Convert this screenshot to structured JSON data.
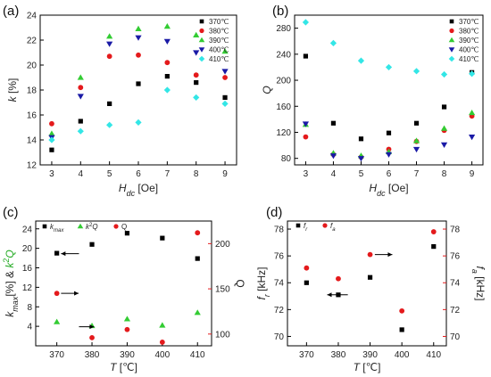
{
  "figure": {
    "panels": [
      "(a)",
      "(b)",
      "(c)",
      "(d)"
    ]
  },
  "chart_data": [
    {
      "type": "scatter",
      "panel": "(a)",
      "xlabel_main": "H",
      "xlabel_sub": "dc",
      "xlabel_unit": "[Oe]",
      "ylabel_main": "k",
      "ylabel_unit": "[%]",
      "xlim": [
        2.6,
        9.4
      ],
      "ylim": [
        12,
        24
      ],
      "xticks": [
        3,
        4,
        5,
        6,
        7,
        8,
        9
      ],
      "yticks": [
        12,
        14,
        16,
        18,
        20,
        22,
        24
      ],
      "legend_position": "top-right",
      "series": [
        {
          "name": "370℃",
          "marker": "square",
          "color": "#000000",
          "x": [
            3,
            4,
            5,
            6,
            7,
            8,
            9
          ],
          "y": [
            13.2,
            15.5,
            16.9,
            18.5,
            19.1,
            18.6,
            17.4
          ]
        },
        {
          "name": "380℃",
          "marker": "circle",
          "color": "#e41a1c",
          "x": [
            3,
            4,
            5,
            6,
            7,
            8,
            9
          ],
          "y": [
            15.3,
            18.2,
            20.7,
            20.8,
            20.2,
            19.2,
            19.0
          ]
        },
        {
          "name": "390℃",
          "marker": "triangle-up",
          "color": "#33cc33",
          "x": [
            3,
            4,
            5,
            6,
            7,
            8,
            9
          ],
          "y": [
            14.5,
            19.0,
            22.3,
            22.9,
            23.1,
            22.4,
            21.1
          ]
        },
        {
          "name": "400℃",
          "marker": "triangle-down",
          "color": "#1a1aa6",
          "x": [
            3,
            4,
            5,
            6,
            7,
            8,
            9
          ],
          "y": [
            14.2,
            17.5,
            21.7,
            22.2,
            21.9,
            21.0,
            19.5
          ]
        },
        {
          "name": "410℃",
          "marker": "diamond",
          "color": "#33e6e6",
          "x": [
            3,
            4,
            5,
            6,
            7,
            8,
            9
          ],
          "y": [
            14.0,
            14.7,
            15.2,
            15.4,
            18.0,
            17.4,
            16.9
          ]
        }
      ]
    },
    {
      "type": "scatter",
      "panel": "(b)",
      "xlabel_main": "H",
      "xlabel_sub": "dc",
      "xlabel_unit": "[Oe]",
      "ylabel_main": "Q",
      "ylabel_unit": "",
      "xlim": [
        2.6,
        9.4
      ],
      "ylim": [
        70,
        300
      ],
      "xticks": [
        3,
        4,
        5,
        6,
        7,
        8,
        9
      ],
      "yticks": [
        80,
        120,
        160,
        200,
        240,
        280
      ],
      "legend_position": "top-right",
      "series": [
        {
          "name": "370℃",
          "marker": "square",
          "color": "#000000",
          "x": [
            3,
            4,
            5,
            6,
            7,
            8,
            9
          ],
          "y": [
            237,
            134,
            110,
            119,
            134,
            159,
            212
          ]
        },
        {
          "name": "380℃",
          "marker": "circle",
          "color": "#e41a1c",
          "x": [
            3,
            4,
            5,
            6,
            7,
            8,
            9
          ],
          "y": [
            113,
            86,
            82,
            94,
            106,
            123,
            145
          ]
        },
        {
          "name": "390℃",
          "marker": "triangle-up",
          "color": "#33cc33",
          "x": [
            3,
            4,
            5,
            6,
            7,
            8,
            9
          ],
          "y": [
            132,
            88,
            84,
            90,
            107,
            126,
            150
          ]
        },
        {
          "name": "400℃",
          "marker": "triangle-down",
          "color": "#1a1aa6",
          "x": [
            3,
            4,
            5,
            6,
            7,
            8,
            9
          ],
          "y": [
            133,
            84,
            80,
            86,
            94,
            101,
            113
          ]
        },
        {
          "name": "410℃",
          "marker": "diamond",
          "color": "#33e6e6",
          "x": [
            3,
            4,
            5,
            6,
            7,
            8,
            9
          ],
          "y": [
            289,
            257,
            230,
            220,
            214,
            209,
            210
          ]
        }
      ]
    },
    {
      "type": "scatter",
      "panel": "(c)",
      "xlabel_main": "T",
      "xlabel_unit": "[℃]",
      "ylabel_left_parts": [
        "k",
        "max",
        "[%] & ",
        "k",
        "2",
        "Q"
      ],
      "ylabel_right": "Q",
      "xlim": [
        364,
        414
      ],
      "ylim_left": [
        0,
        25.6
      ],
      "ylim_right": [
        87,
        225
      ],
      "xticks": [
        370,
        380,
        390,
        400,
        410
      ],
      "yticks_left": [
        4,
        8,
        12,
        16,
        20,
        24
      ],
      "yticks_right": [
        100,
        150,
        200
      ],
      "legend_position": "top",
      "series": [
        {
          "name_parts": [
            "k",
            "max"
          ],
          "marker": "square",
          "color": "#000000",
          "axis": "left",
          "x": [
            370,
            380,
            390,
            400,
            410
          ],
          "y": [
            19.0,
            20.8,
            23.1,
            22.1,
            17.9
          ]
        },
        {
          "name_parts": [
            "k",
            "2",
            "Q"
          ],
          "marker": "triangle-up",
          "color": "#33cc33",
          "axis": "left",
          "x": [
            370,
            380,
            390,
            400,
            410
          ],
          "y": [
            4.9,
            4.1,
            5.5,
            4.2,
            6.8
          ]
        },
        {
          "name_parts": [
            "Q"
          ],
          "marker": "circle",
          "color": "#e41a1c",
          "axis": "right",
          "x": [
            370,
            380,
            390,
            400,
            410
          ],
          "y": [
            145,
            96,
            105,
            91,
            212
          ]
        }
      ]
    },
    {
      "type": "scatter",
      "panel": "(d)",
      "xlabel_main": "T",
      "xlabel_unit": "[℃]",
      "ylabel_left_parts": [
        "f",
        "r",
        " [kHz]"
      ],
      "ylabel_right_parts": [
        "f",
        "a",
        " [kHz]"
      ],
      "xlim": [
        364,
        414
      ],
      "ylim_left": [
        69.3,
        78.6
      ],
      "ylim_right": [
        69.3,
        78.6
      ],
      "xticks": [
        370,
        380,
        390,
        400,
        410
      ],
      "yticks_left": [
        70,
        72,
        74,
        76,
        78
      ],
      "yticks_right": [
        70,
        72,
        74,
        76,
        78
      ],
      "legend_position": "top-left",
      "series": [
        {
          "name_parts": [
            "f",
            "r"
          ],
          "marker": "square",
          "color": "#000000",
          "axis": "left",
          "x": [
            370,
            380,
            390,
            400,
            410
          ],
          "y": [
            74.0,
            73.1,
            74.4,
            70.5,
            76.7
          ]
        },
        {
          "name_parts": [
            "f",
            "a"
          ],
          "marker": "circle",
          "color": "#e41a1c",
          "axis": "right",
          "x": [
            370,
            380,
            390,
            400,
            410
          ],
          "y": [
            75.1,
            74.3,
            76.1,
            71.9,
            77.8
          ]
        }
      ]
    }
  ]
}
